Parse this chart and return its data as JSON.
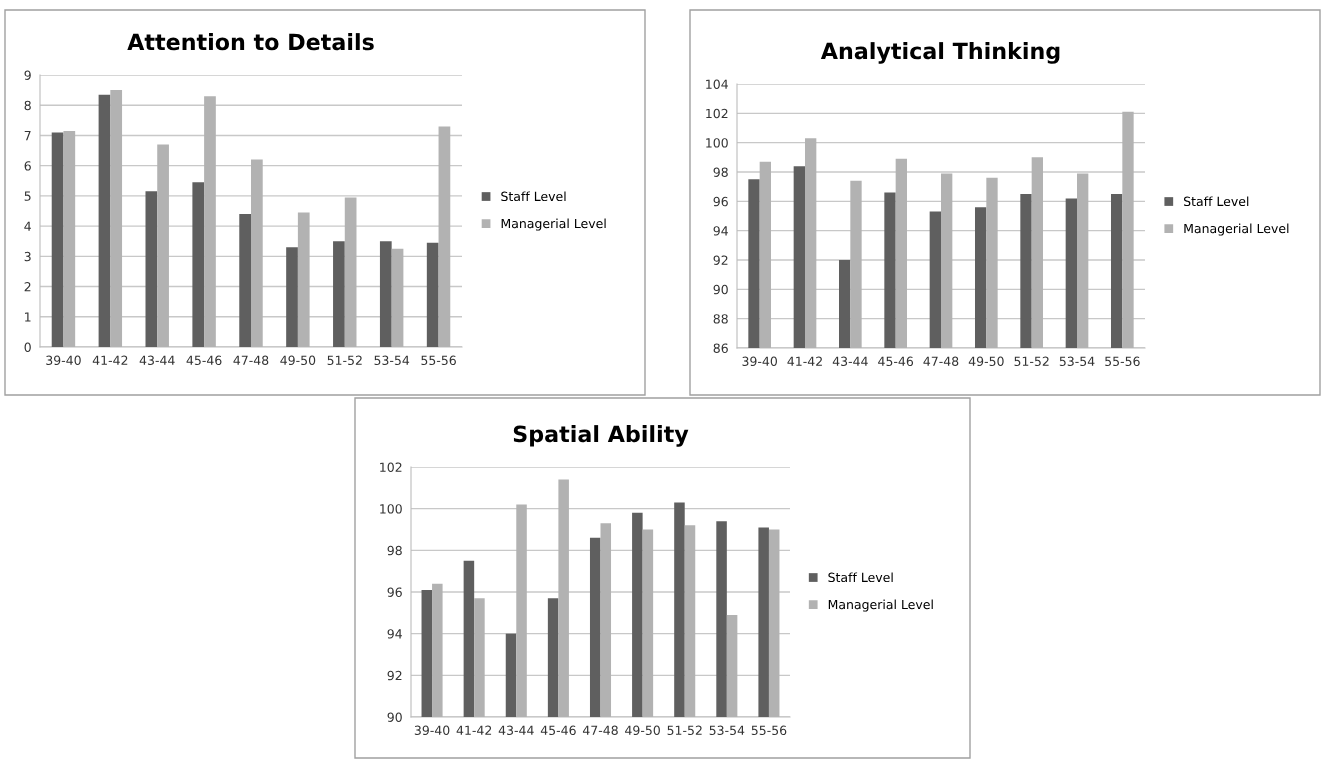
{
  "chart_data": [
    {
      "type": "bar",
      "title": "Attention to Details",
      "categories": [
        "39-40",
        "41-42",
        "43-44",
        "45-46",
        "47-48",
        "49-50",
        "51-52",
        "53-54",
        "55-56"
      ],
      "series": [
        {
          "name": "Staff Level",
          "color": "#5f5f5f",
          "values": [
            7.1,
            8.35,
            5.15,
            5.45,
            4.4,
            3.3,
            3.5,
            3.5,
            3.45
          ]
        },
        {
          "name": "Managerial Level",
          "color": "#b2b2b2",
          "values": [
            7.15,
            8.5,
            6.7,
            8.3,
            6.2,
            4.45,
            4.95,
            3.25,
            7.3
          ]
        }
      ],
      "ylim": [
        0,
        9
      ],
      "yticks": [
        0,
        1,
        2,
        3,
        4,
        5,
        6,
        7,
        8,
        9
      ],
      "grid": "y",
      "legend": "right"
    },
    {
      "type": "bar",
      "title": "Analytical Thinking",
      "categories": [
        "39-40",
        "41-42",
        "43-44",
        "45-46",
        "47-48",
        "49-50",
        "51-52",
        "53-54",
        "55-56"
      ],
      "series": [
        {
          "name": "Staff Level",
          "color": "#5f5f5f",
          "values": [
            97.5,
            98.4,
            92.0,
            96.6,
            95.3,
            95.6,
            96.5,
            96.2,
            96.5
          ]
        },
        {
          "name": "Managerial Level",
          "color": "#b2b2b2",
          "values": [
            98.7,
            100.3,
            97.4,
            98.9,
            97.9,
            97.6,
            99.0,
            97.9,
            102.1
          ]
        }
      ],
      "ylim": [
        86,
        104
      ],
      "yticks": [
        86,
        88,
        90,
        92,
        94,
        96,
        98,
        100,
        102,
        104
      ],
      "grid": "y",
      "legend": "right"
    },
    {
      "type": "bar",
      "title": "Spatial Ability",
      "categories": [
        "39-40",
        "41-42",
        "43-44",
        "45-46",
        "47-48",
        "49-50",
        "51-52",
        "53-54",
        "55-56"
      ],
      "series": [
        {
          "name": "Staff Level",
          "color": "#5f5f5f",
          "values": [
            96.1,
            97.5,
            94.0,
            95.7,
            98.6,
            99.8,
            100.3,
            99.4,
            99.1
          ]
        },
        {
          "name": "Managerial Level",
          "color": "#b2b2b2",
          "values": [
            96.4,
            95.7,
            100.2,
            101.4,
            99.3,
            99.0,
            99.2,
            94.9,
            99.0
          ]
        }
      ],
      "ylim": [
        90,
        102
      ],
      "yticks": [
        90,
        92,
        94,
        96,
        98,
        100,
        102
      ],
      "grid": "y",
      "legend": "right"
    }
  ]
}
